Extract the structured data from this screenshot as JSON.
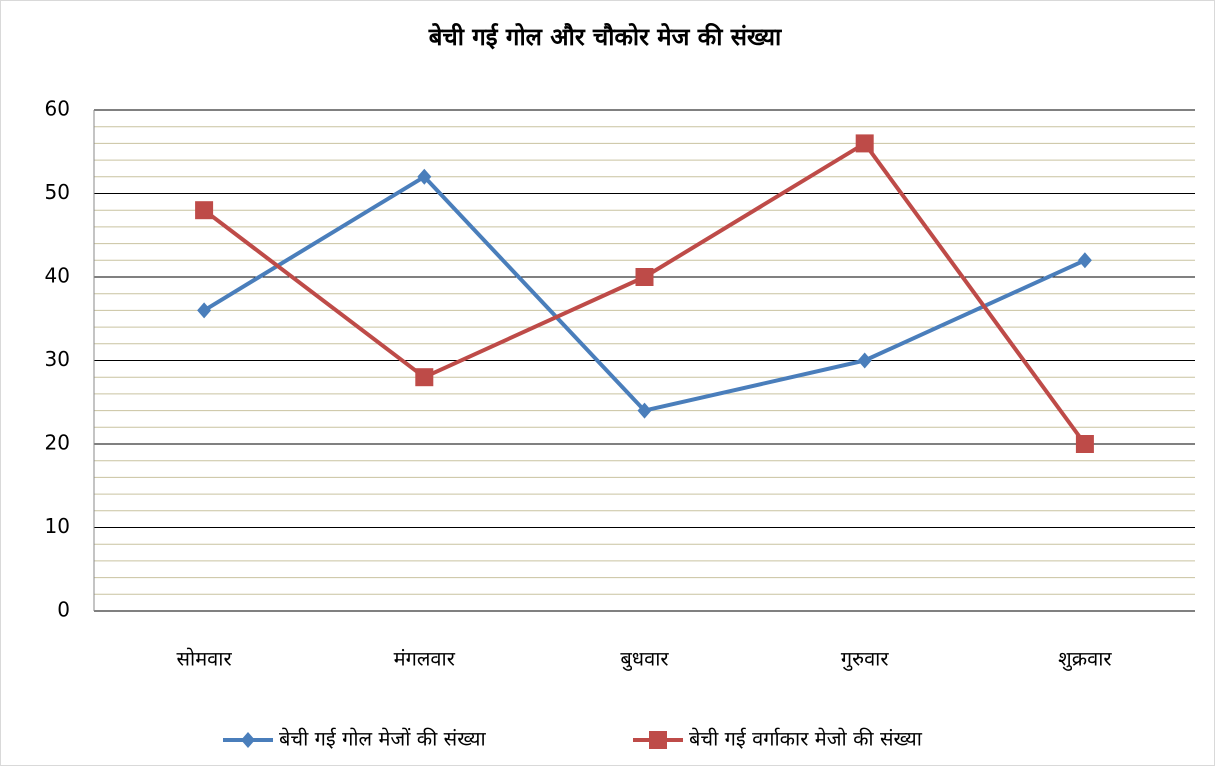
{
  "chart_data": {
    "type": "line",
    "title": "बेची गई गोल और चौकोर मेज की संख्या",
    "categories": [
      "सोमवार",
      "मंगलवार",
      "बुधवार",
      "गुरुवार",
      "शुक्रवार"
    ],
    "series": [
      {
        "name": "बेची गई गोल मेजों की संख्या",
        "color": "#4a7ebb",
        "marker": "diamond",
        "values": [
          36,
          52,
          24,
          30,
          42
        ]
      },
      {
        "name": "बेची गई वर्गाकार मेजो की संख्या",
        "color": "#be4b48",
        "marker": "square",
        "values": [
          48,
          28,
          40,
          56,
          20
        ]
      }
    ],
    "ylim": [
      0,
      60
    ],
    "yticks": [
      0,
      10,
      20,
      30,
      40,
      50,
      60
    ],
    "minor_yticks": [
      2,
      4,
      6,
      8,
      12,
      14,
      16,
      18,
      22,
      24,
      26,
      28,
      32,
      34,
      36,
      38,
      42,
      44,
      46,
      48,
      52,
      54,
      56,
      58
    ],
    "grid": true,
    "legend": "bottom"
  }
}
